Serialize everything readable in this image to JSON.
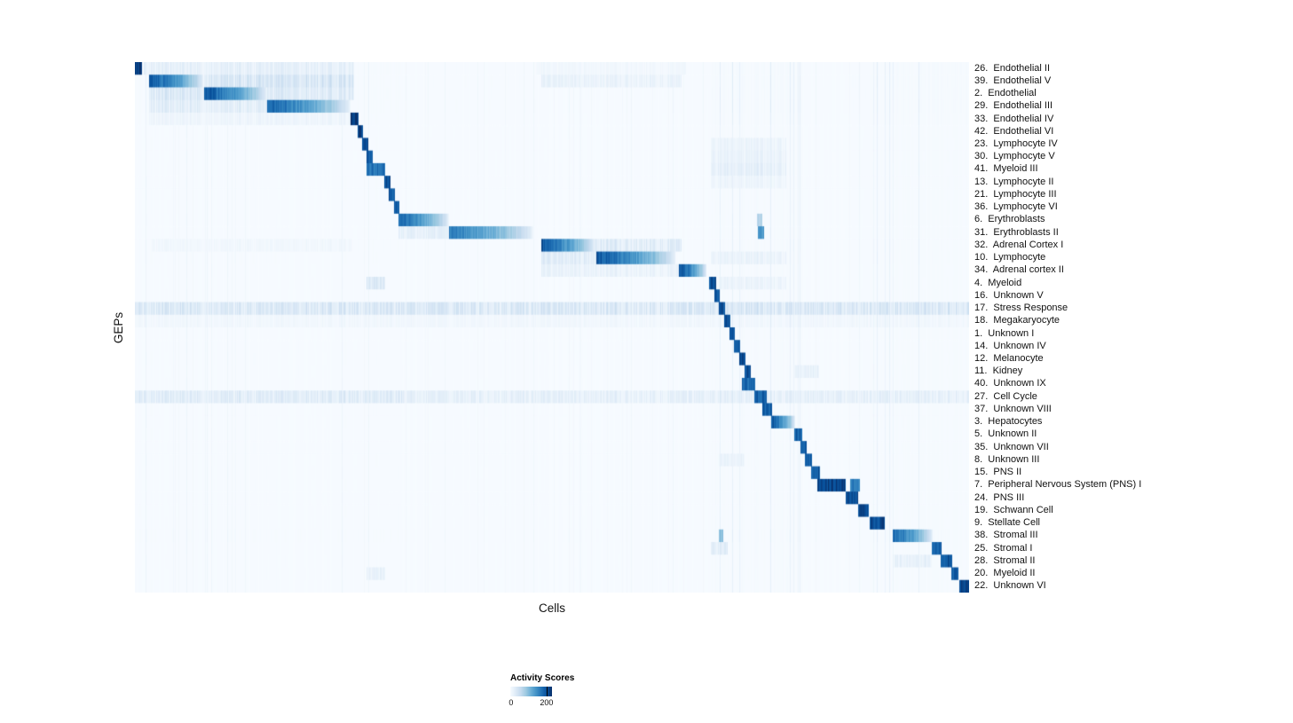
{
  "figure": {
    "background": "#ffffff"
  },
  "chart_data": {
    "type": "heatmap",
    "title": "",
    "xlabel": "Cells",
    "ylabel": "GEPs",
    "x_tick_labels": [],
    "grid": false,
    "legend_position": "bottom",
    "colorbar": {
      "label": "Activity Scores",
      "ticks": [
        0,
        200
      ],
      "min": 0,
      "max": 230
    },
    "colormap": [
      "#f7fbff",
      "#deebf7",
      "#c6dbef",
      "#9ecae1",
      "#6baed6",
      "#4292c6",
      "#2171b5",
      "#08519c",
      "#08306b"
    ],
    "rows_note": "segments are [startFrac, endFrac, peakActivityScore, fadeRight(0/1), noisy(0/1)] along the Cells axis",
    "rows": [
      {
        "id": 26,
        "name": "Endothelial II",
        "label": "26.  Endothelial II",
        "stripes": 1.4,
        "segments": [
          [
            0,
            0.008,
            215,
            0,
            0
          ],
          [
            0.01,
            0.262,
            30,
            0,
            1
          ],
          [
            0.48,
            0.66,
            10,
            0,
            1
          ]
        ]
      },
      {
        "id": 39,
        "name": "Endothelial V",
        "label": "39.  Endothelial V",
        "stripes": 1.4,
        "segments": [
          [
            0.017,
            0.082,
            200,
            1,
            0
          ],
          [
            0.082,
            0.262,
            55,
            0,
            1
          ],
          [
            0.487,
            0.655,
            22,
            0,
            1
          ]
        ]
      },
      {
        "id": 2,
        "name": "Endothelial",
        "label": "2.  Endothelial",
        "stripes": 1.4,
        "segments": [
          [
            0.082,
            0.158,
            200,
            1,
            0
          ],
          [
            0.017,
            0.082,
            48,
            0,
            1
          ],
          [
            0.158,
            0.262,
            42,
            0,
            1
          ]
        ]
      },
      {
        "id": 29,
        "name": "Endothelial III",
        "label": "29.  Endothelial III",
        "stripes": 1.4,
        "segments": [
          [
            0.158,
            0.258,
            185,
            1,
            0
          ],
          [
            0.017,
            0.158,
            36,
            0,
            1
          ]
        ]
      },
      {
        "id": 33,
        "name": "Endothelial IV",
        "label": "33.  Endothelial IV",
        "stripes": 1.2,
        "segments": [
          [
            0.258,
            0.268,
            215,
            0,
            0
          ],
          [
            0.017,
            0.258,
            16,
            0,
            1
          ]
        ]
      },
      {
        "id": 42,
        "name": "Endothelial VI",
        "label": "42.  Endothelial VI",
        "stripes": 1,
        "segments": [
          [
            0.266,
            0.273,
            210,
            0,
            0
          ]
        ]
      },
      {
        "id": 23,
        "name": "Lymphocyte IV",
        "label": "23.  Lymphocyte IV",
        "stripes": 1,
        "segments": [
          [
            0.272,
            0.279,
            200,
            0,
            0
          ],
          [
            0.69,
            0.78,
            18,
            0,
            1
          ]
        ]
      },
      {
        "id": 30,
        "name": "Lymphocyte V",
        "label": "30.  Lymphocyte V",
        "stripes": 1,
        "segments": [
          [
            0.277,
            0.285,
            200,
            0,
            0
          ],
          [
            0.69,
            0.78,
            22,
            0,
            1
          ]
        ]
      },
      {
        "id": 41,
        "name": "Myeloid III",
        "label": "41.  Myeloid III",
        "stripes": 1,
        "segments": [
          [
            0.277,
            0.299,
            170,
            0,
            0
          ],
          [
            0.69,
            0.78,
            28,
            0,
            1
          ]
        ]
      },
      {
        "id": 13,
        "name": "Lymphocyte II",
        "label": "13.  Lymphocyte II",
        "stripes": 1,
        "segments": [
          [
            0.298,
            0.306,
            200,
            0,
            0
          ],
          [
            0.69,
            0.78,
            15,
            0,
            1
          ]
        ]
      },
      {
        "id": 21,
        "name": "Lymphocyte III",
        "label": "21.  Lymphocyte III",
        "stripes": 1,
        "segments": [
          [
            0.304,
            0.311,
            195,
            0,
            0
          ]
        ]
      },
      {
        "id": 36,
        "name": "Lymphocyte VI",
        "label": "36.  Lymphocyte VI",
        "stripes": 1,
        "segments": [
          [
            0.31,
            0.317,
            195,
            0,
            0
          ]
        ]
      },
      {
        "id": 6,
        "name": "Erythroblasts",
        "label": "6.  Erythroblasts",
        "stripes": 1,
        "segments": [
          [
            0.315,
            0.376,
            185,
            1,
            0
          ],
          [
            0.745,
            0.752,
            70,
            0,
            0
          ]
        ]
      },
      {
        "id": 31,
        "name": "Erythroblasts II",
        "label": "31.  Erythroblasts II",
        "stripes": 1,
        "segments": [
          [
            0.376,
            0.477,
            165,
            1,
            0
          ],
          [
            0.315,
            0.376,
            28,
            0,
            1
          ],
          [
            0.746,
            0.754,
            135,
            0,
            0
          ]
        ]
      },
      {
        "id": 32,
        "name": "Adrenal Cortex I",
        "label": "32.  Adrenal Cortex I",
        "stripes": 1.1,
        "segments": [
          [
            0.487,
            0.551,
            195,
            1,
            0
          ],
          [
            0.551,
            0.655,
            40,
            0,
            1
          ],
          [
            0.02,
            0.26,
            10,
            0,
            1
          ]
        ]
      },
      {
        "id": 10,
        "name": "Lymphocyte",
        "label": "10.  Lymphocyte",
        "stripes": 1.1,
        "segments": [
          [
            0.553,
            0.648,
            195,
            1,
            0
          ],
          [
            0.487,
            0.553,
            36,
            0,
            1
          ],
          [
            0.69,
            0.78,
            20,
            0,
            1
          ]
        ]
      },
      {
        "id": 34,
        "name": "Adrenal cortex II",
        "label": "34.  Adrenal cortex II",
        "stripes": 1,
        "segments": [
          [
            0.652,
            0.685,
            205,
            1,
            0
          ],
          [
            0.487,
            0.652,
            22,
            0,
            1
          ]
        ]
      },
      {
        "id": 4,
        "name": "Myeloid",
        "label": "4.  Myeloid",
        "stripes": 1,
        "segments": [
          [
            0.688,
            0.696,
            200,
            0,
            0
          ],
          [
            0.277,
            0.299,
            45,
            0,
            1
          ],
          [
            0.7,
            0.78,
            18,
            0,
            1
          ]
        ]
      },
      {
        "id": 16,
        "name": "Unknown V",
        "label": "16.  Unknown V",
        "stripes": 1,
        "segments": [
          [
            0.694,
            0.701,
            195,
            0,
            0
          ]
        ]
      },
      {
        "id": 17,
        "name": "Stress Response",
        "label": "17.  Stress Response",
        "stripes": 2.4,
        "segments": [
          [
            0,
            1,
            48,
            0,
            1
          ],
          [
            0.7,
            0.707,
            200,
            0,
            0
          ]
        ]
      },
      {
        "id": 18,
        "name": "Megakaryocyte",
        "label": "18.  Megakaryocyte",
        "stripes": 1.5,
        "segments": [
          [
            0.706,
            0.713,
            195,
            0,
            0
          ],
          [
            0,
            1,
            10,
            0,
            1
          ]
        ]
      },
      {
        "id": 1,
        "name": "Unknown I",
        "label": "1.  Unknown I",
        "stripes": 1,
        "segments": [
          [
            0.712,
            0.719,
            190,
            0,
            0
          ]
        ]
      },
      {
        "id": 14,
        "name": "Unknown IV",
        "label": "14.  Unknown IV",
        "stripes": 1,
        "segments": [
          [
            0.718,
            0.725,
            190,
            0,
            0
          ]
        ]
      },
      {
        "id": 12,
        "name": "Melanocyte",
        "label": "12.  Melanocyte",
        "stripes": 1,
        "segments": [
          [
            0.724,
            0.731,
            200,
            0,
            0
          ]
        ]
      },
      {
        "id": 11,
        "name": "Kidney",
        "label": "11.  Kidney",
        "stripes": 1,
        "segments": [
          [
            0.73,
            0.738,
            200,
            0,
            0
          ],
          [
            0.79,
            0.82,
            25,
            0,
            1
          ]
        ]
      },
      {
        "id": 40,
        "name": "Unknown IX",
        "label": "40.  Unknown IX",
        "stripes": 1,
        "segments": [
          [
            0.727,
            0.743,
            180,
            0,
            0
          ]
        ]
      },
      {
        "id": 27,
        "name": "Cell Cycle",
        "label": "27.  Cell Cycle",
        "stripes": 2,
        "segments": [
          [
            0,
            1,
            28,
            0,
            1
          ],
          [
            0.742,
            0.757,
            190,
            0,
            0
          ],
          [
            0,
            0.32,
            38,
            0,
            1
          ]
        ]
      },
      {
        "id": 37,
        "name": "Unknown VIII",
        "label": "37.  Unknown VIII",
        "stripes": 1,
        "segments": [
          [
            0.752,
            0.763,
            190,
            0,
            0
          ]
        ]
      },
      {
        "id": 3,
        "name": "Hepatocytes",
        "label": "3.  Hepatocytes",
        "stripes": 1,
        "segments": [
          [
            0.762,
            0.791,
            200,
            1,
            0
          ]
        ]
      },
      {
        "id": 5,
        "name": "Unknown II",
        "label": "5.  Unknown II",
        "stripes": 1,
        "segments": [
          [
            0.79,
            0.799,
            190,
            0,
            0
          ]
        ]
      },
      {
        "id": 35,
        "name": "Unknown VII",
        "label": "35.  Unknown VII",
        "stripes": 1,
        "segments": [
          [
            0.797,
            0.805,
            190,
            0,
            0
          ]
        ]
      },
      {
        "id": 8,
        "name": "Unknown III",
        "label": "8.  Unknown III",
        "stripes": 1,
        "segments": [
          [
            0.803,
            0.811,
            190,
            0,
            0
          ],
          [
            0.7,
            0.73,
            20,
            0,
            1
          ]
        ]
      },
      {
        "id": 15,
        "name": "PNS II",
        "label": "15.  PNS II",
        "stripes": 1,
        "segments": [
          [
            0.81,
            0.821,
            195,
            0,
            0
          ]
        ]
      },
      {
        "id": 7,
        "name": "Peripheral Nervous System (PNS) I",
        "label": "7.  Peripheral Nervous System (PNS) I",
        "stripes": 1,
        "segments": [
          [
            0.818,
            0.852,
            210,
            0,
            0
          ],
          [
            0.857,
            0.869,
            165,
            0,
            0
          ]
        ]
      },
      {
        "id": 24,
        "name": "PNS III",
        "label": "24.  PNS III",
        "stripes": 1,
        "segments": [
          [
            0.852,
            0.867,
            200,
            0,
            0
          ]
        ]
      },
      {
        "id": 19,
        "name": "Schwann Cell",
        "label": "19.  Schwann Cell",
        "stripes": 1,
        "segments": [
          [
            0.866,
            0.879,
            205,
            0,
            0
          ]
        ]
      },
      {
        "id": 9,
        "name": "Stellate Cell",
        "label": "9.  Stellate Cell",
        "stripes": 1,
        "segments": [
          [
            0.88,
            0.898,
            205,
            0,
            0
          ]
        ]
      },
      {
        "id": 38,
        "name": "Stromal III",
        "label": "38.  Stromal III",
        "stripes": 1.2,
        "segments": [
          [
            0.908,
            0.956,
            185,
            1,
            0
          ],
          [
            0.7,
            0.705,
            95,
            0,
            0
          ]
        ]
      },
      {
        "id": 25,
        "name": "Stromal I",
        "label": "25.  Stromal I",
        "stripes": 1,
        "segments": [
          [
            0.955,
            0.967,
            190,
            0,
            0
          ],
          [
            0.69,
            0.71,
            35,
            0,
            1
          ]
        ]
      },
      {
        "id": 28,
        "name": "Stromal II",
        "label": "28.  Stromal II",
        "stripes": 1,
        "segments": [
          [
            0.965,
            0.979,
            200,
            0,
            0
          ],
          [
            0.908,
            0.955,
            25,
            0,
            1
          ]
        ]
      },
      {
        "id": 20,
        "name": "Myeloid II",
        "label": "20.  Myeloid II",
        "stripes": 1,
        "segments": [
          [
            0.978,
            0.987,
            190,
            0,
            0
          ],
          [
            0.277,
            0.299,
            25,
            0,
            1
          ]
        ]
      },
      {
        "id": 22,
        "name": "Unknown VI",
        "label": "22.  Unknown VI",
        "stripes": 1,
        "segments": [
          [
            0.988,
            1,
            215,
            0,
            0
          ]
        ]
      }
    ]
  }
}
